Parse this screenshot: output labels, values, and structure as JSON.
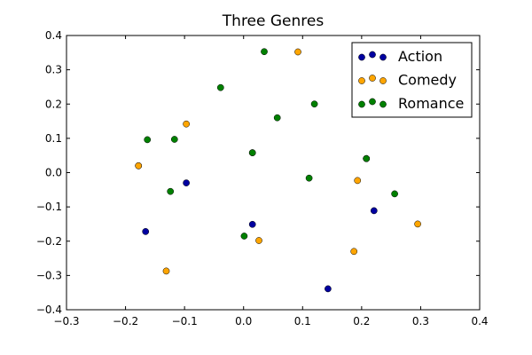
{
  "chart_data": {
    "type": "scatter",
    "title": "Three Genres",
    "xlabel": "",
    "ylabel": "",
    "xlim": [
      -0.3,
      0.4
    ],
    "ylim": [
      -0.4,
      0.4
    ],
    "xticks": [
      "−0.3",
      "−0.2",
      "−0.1",
      "0.0",
      "0.1",
      "0.2",
      "0.3",
      "0.4"
    ],
    "yticks": [
      "−0.4",
      "−0.3",
      "−0.2",
      "−0.1",
      "0.0",
      "0.1",
      "0.2",
      "0.3",
      "0.4"
    ],
    "grid": false,
    "legend_position": "top-right",
    "series": [
      {
        "name": "Action",
        "color": "#0000a0",
        "points": [
          [
            -0.178,
            0.02
          ],
          [
            -0.166,
            -0.172
          ],
          [
            -0.097,
            -0.03
          ],
          [
            0.015,
            -0.151
          ],
          [
            0.143,
            -0.339
          ],
          [
            0.221,
            -0.111
          ],
          [
            0.208,
            0.041
          ]
        ]
      },
      {
        "name": "Comedy",
        "color": "#ffa500",
        "points": [
          [
            -0.178,
            0.02
          ],
          [
            -0.131,
            -0.287
          ],
          [
            -0.097,
            0.142
          ],
          [
            0.015,
            0.058
          ],
          [
            0.026,
            -0.198
          ],
          [
            0.092,
            0.352
          ],
          [
            0.187,
            -0.23
          ],
          [
            0.193,
            -0.023
          ],
          [
            0.208,
            0.041
          ],
          [
            0.295,
            -0.15
          ]
        ]
      },
      {
        "name": "Romance",
        "color": "#008000",
        "points": [
          [
            -0.163,
            0.096
          ],
          [
            -0.124,
            -0.055
          ],
          [
            -0.117,
            0.097
          ],
          [
            -0.039,
            0.248
          ],
          [
            0.001,
            -0.185
          ],
          [
            0.015,
            0.058
          ],
          [
            0.035,
            0.353
          ],
          [
            0.057,
            0.16
          ],
          [
            0.111,
            -0.016
          ],
          [
            0.12,
            0.2
          ],
          [
            0.208,
            0.041
          ],
          [
            0.256,
            -0.062
          ]
        ]
      }
    ]
  }
}
